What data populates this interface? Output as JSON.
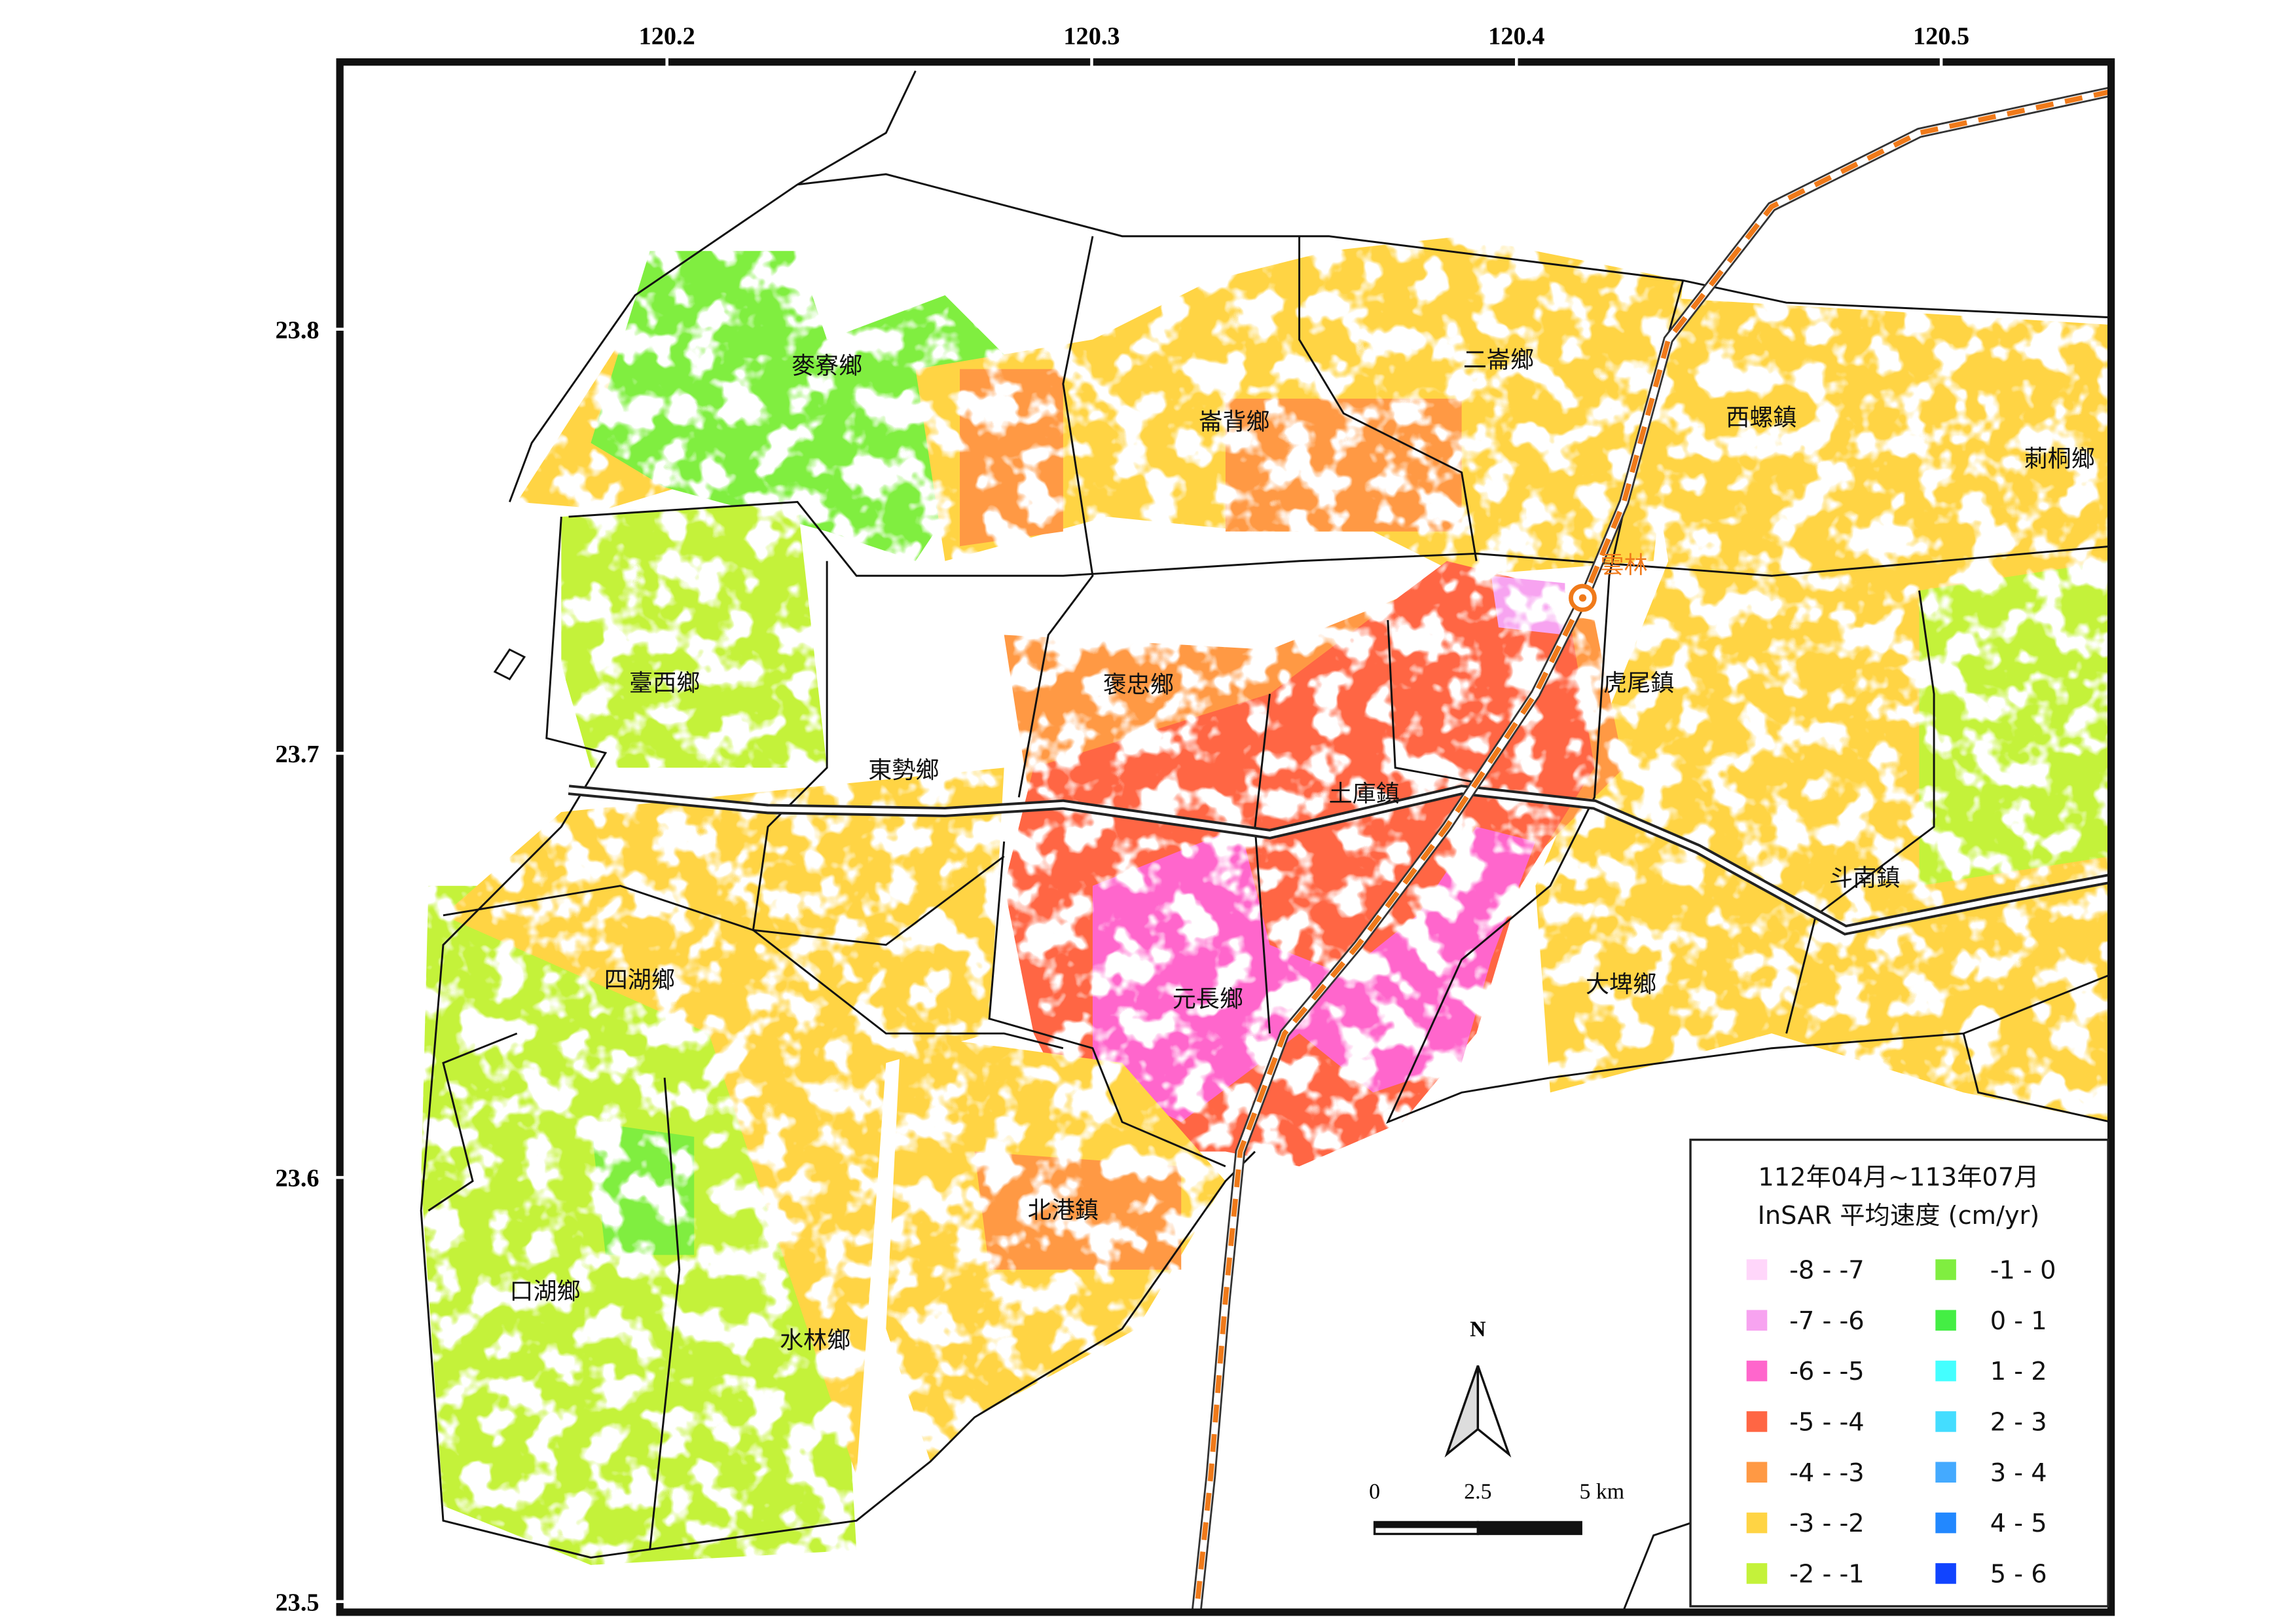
{
  "map": {
    "xlim": [
      120.123,
      120.54
    ],
    "ylim": [
      23.4975,
      23.863
    ],
    "xticks": [
      120.2,
      120.3,
      120.4,
      120.5
    ],
    "yticks": [
      23.8,
      23.7,
      23.6,
      23.5
    ],
    "towns": [
      "麥寮鄉",
      "崙背鄉",
      "二崙鄉",
      "西螺鎮",
      "莿桐鄉",
      "臺西鄉",
      "褒忠鄉",
      "虎尾鎮",
      "東勢鄉",
      "土庫鎮",
      "斗南鎮",
      "四湖鄉",
      "元長鄉",
      "大埤鄉",
      "北港鎮",
      "口湖鄉",
      "水林鄉"
    ],
    "station": "雲林",
    "north": "N",
    "scale_labels": [
      "0",
      "2.5",
      "5 km"
    ],
    "legend": {
      "title": [
        "112年04月~113年07月",
        "InSAR 平均速度 (cm/yr)"
      ],
      "items": [
        {
          "label": "-8 - -7",
          "color": "#ffd6fa"
        },
        {
          "label": "-7 - -6",
          "color": "#f7a3f0"
        },
        {
          "label": "-6 - -5",
          "color": "#ff66cc"
        },
        {
          "label": "-5 - -4",
          "color": "#ff6644"
        },
        {
          "label": "-4 - -3",
          "color": "#ff9944"
        },
        {
          "label": "-3 - -2",
          "color": "#ffd444"
        },
        {
          "label": "-2 - -1",
          "color": "#c4f23a"
        },
        {
          "label": "-1 - 0",
          "color": "#80ee40"
        },
        {
          "label": "0 - 1",
          "color": "#44ee44"
        },
        {
          "label": "1 - 2",
          "color": "#44ffff"
        },
        {
          "label": "2 - 3",
          "color": "#44ddff"
        },
        {
          "label": "3 - 4",
          "color": "#44aaff"
        },
        {
          "label": "4 - 5",
          "color": "#2288ff"
        },
        {
          "label": "5 - 6",
          "color": "#1144ff"
        }
      ]
    }
  }
}
